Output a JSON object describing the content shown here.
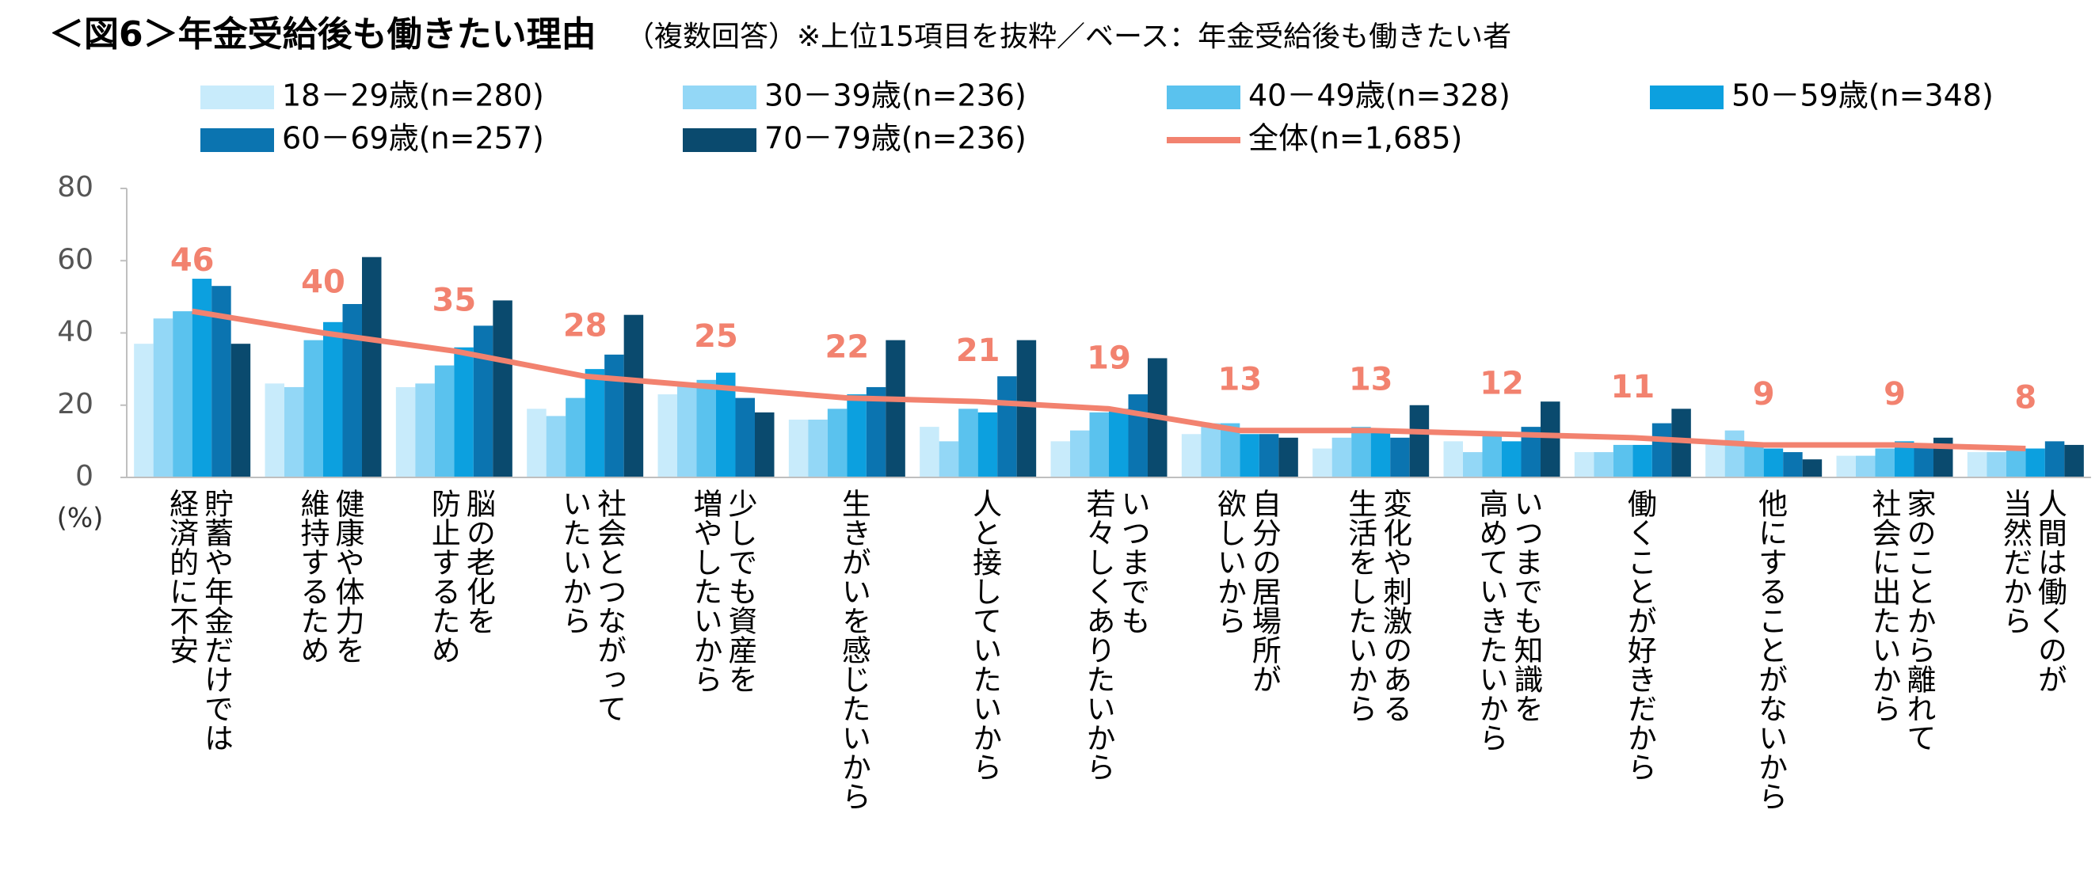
{
  "chart_data": {
    "type": "bar",
    "title": "＜図6＞年金受給後も働きたい理由",
    "subtitle": "（複数回答）※上位15項目を抜粋／ベース：年金受給後も働きたい者",
    "y_label": "(%)",
    "categories": [
      "貯蓄や年金だけでは\n経済的に不安",
      "健康や体力を\n維持するため",
      "脳の老化を\n防止するため",
      "社会とつながって\nいたいから",
      "少しでも資産を\n増やしたいから",
      "生きがいを感じたいから",
      "人と接していたいから",
      "いつまでも\n若々しくありたいから",
      "自分の居場所が\n欲しいから",
      "変化や刺激のある\n生活をしたいから",
      "いつまでも知識を\n高めていきたいから",
      "働くことが好きだから",
      "他にすることがないから",
      "家のことから離れて\n社会に出たいから",
      "人間は働くのが\n当然だから"
    ],
    "series": [
      {
        "name": "18－29歳(n=280)",
        "color": "#c8ebfb",
        "values": [
          37,
          26,
          25,
          19,
          23,
          16,
          14,
          10,
          12,
          8,
          10,
          7,
          10,
          6,
          7
        ]
      },
      {
        "name": "30－39歳(n=236)",
        "color": "#93d7f6",
        "values": [
          44,
          25,
          26,
          17,
          26,
          16,
          10,
          13,
          15,
          11,
          7,
          7,
          13,
          6,
          7
        ]
      },
      {
        "name": "40－49歳(n=328)",
        "color": "#5ac2ee",
        "values": [
          46,
          38,
          31,
          22,
          27,
          19,
          19,
          18,
          15,
          14,
          12,
          9,
          9,
          8,
          8
        ]
      },
      {
        "name": "50－59歳(n=348)",
        "color": "#0ca0df",
        "values": [
          55,
          43,
          36,
          30,
          29,
          23,
          18,
          19,
          12,
          13,
          10,
          9,
          8,
          10,
          8
        ]
      },
      {
        "name": "60－69歳(n=257)",
        "color": "#0b74b0",
        "values": [
          53,
          48,
          42,
          34,
          22,
          25,
          28,
          23,
          12,
          11,
          14,
          15,
          7,
          9,
          10
        ]
      },
      {
        "name": "70－79歳(n=236)",
        "color": "#0a4a6e",
        "values": [
          37,
          61,
          49,
          45,
          18,
          38,
          38,
          33,
          11,
          20,
          21,
          19,
          5,
          11,
          9
        ]
      },
      {
        "name": "全体(n=1,685)",
        "color": "#f2826f",
        "type": "line",
        "values": [
          46,
          40,
          35,
          28,
          25,
          22,
          21,
          19,
          13,
          13,
          12,
          11,
          9,
          9,
          8
        ]
      }
    ],
    "ylim": [
      0,
      80
    ],
    "yticks": [
      0,
      20,
      40,
      60,
      80
    ],
    "grid": false
  }
}
